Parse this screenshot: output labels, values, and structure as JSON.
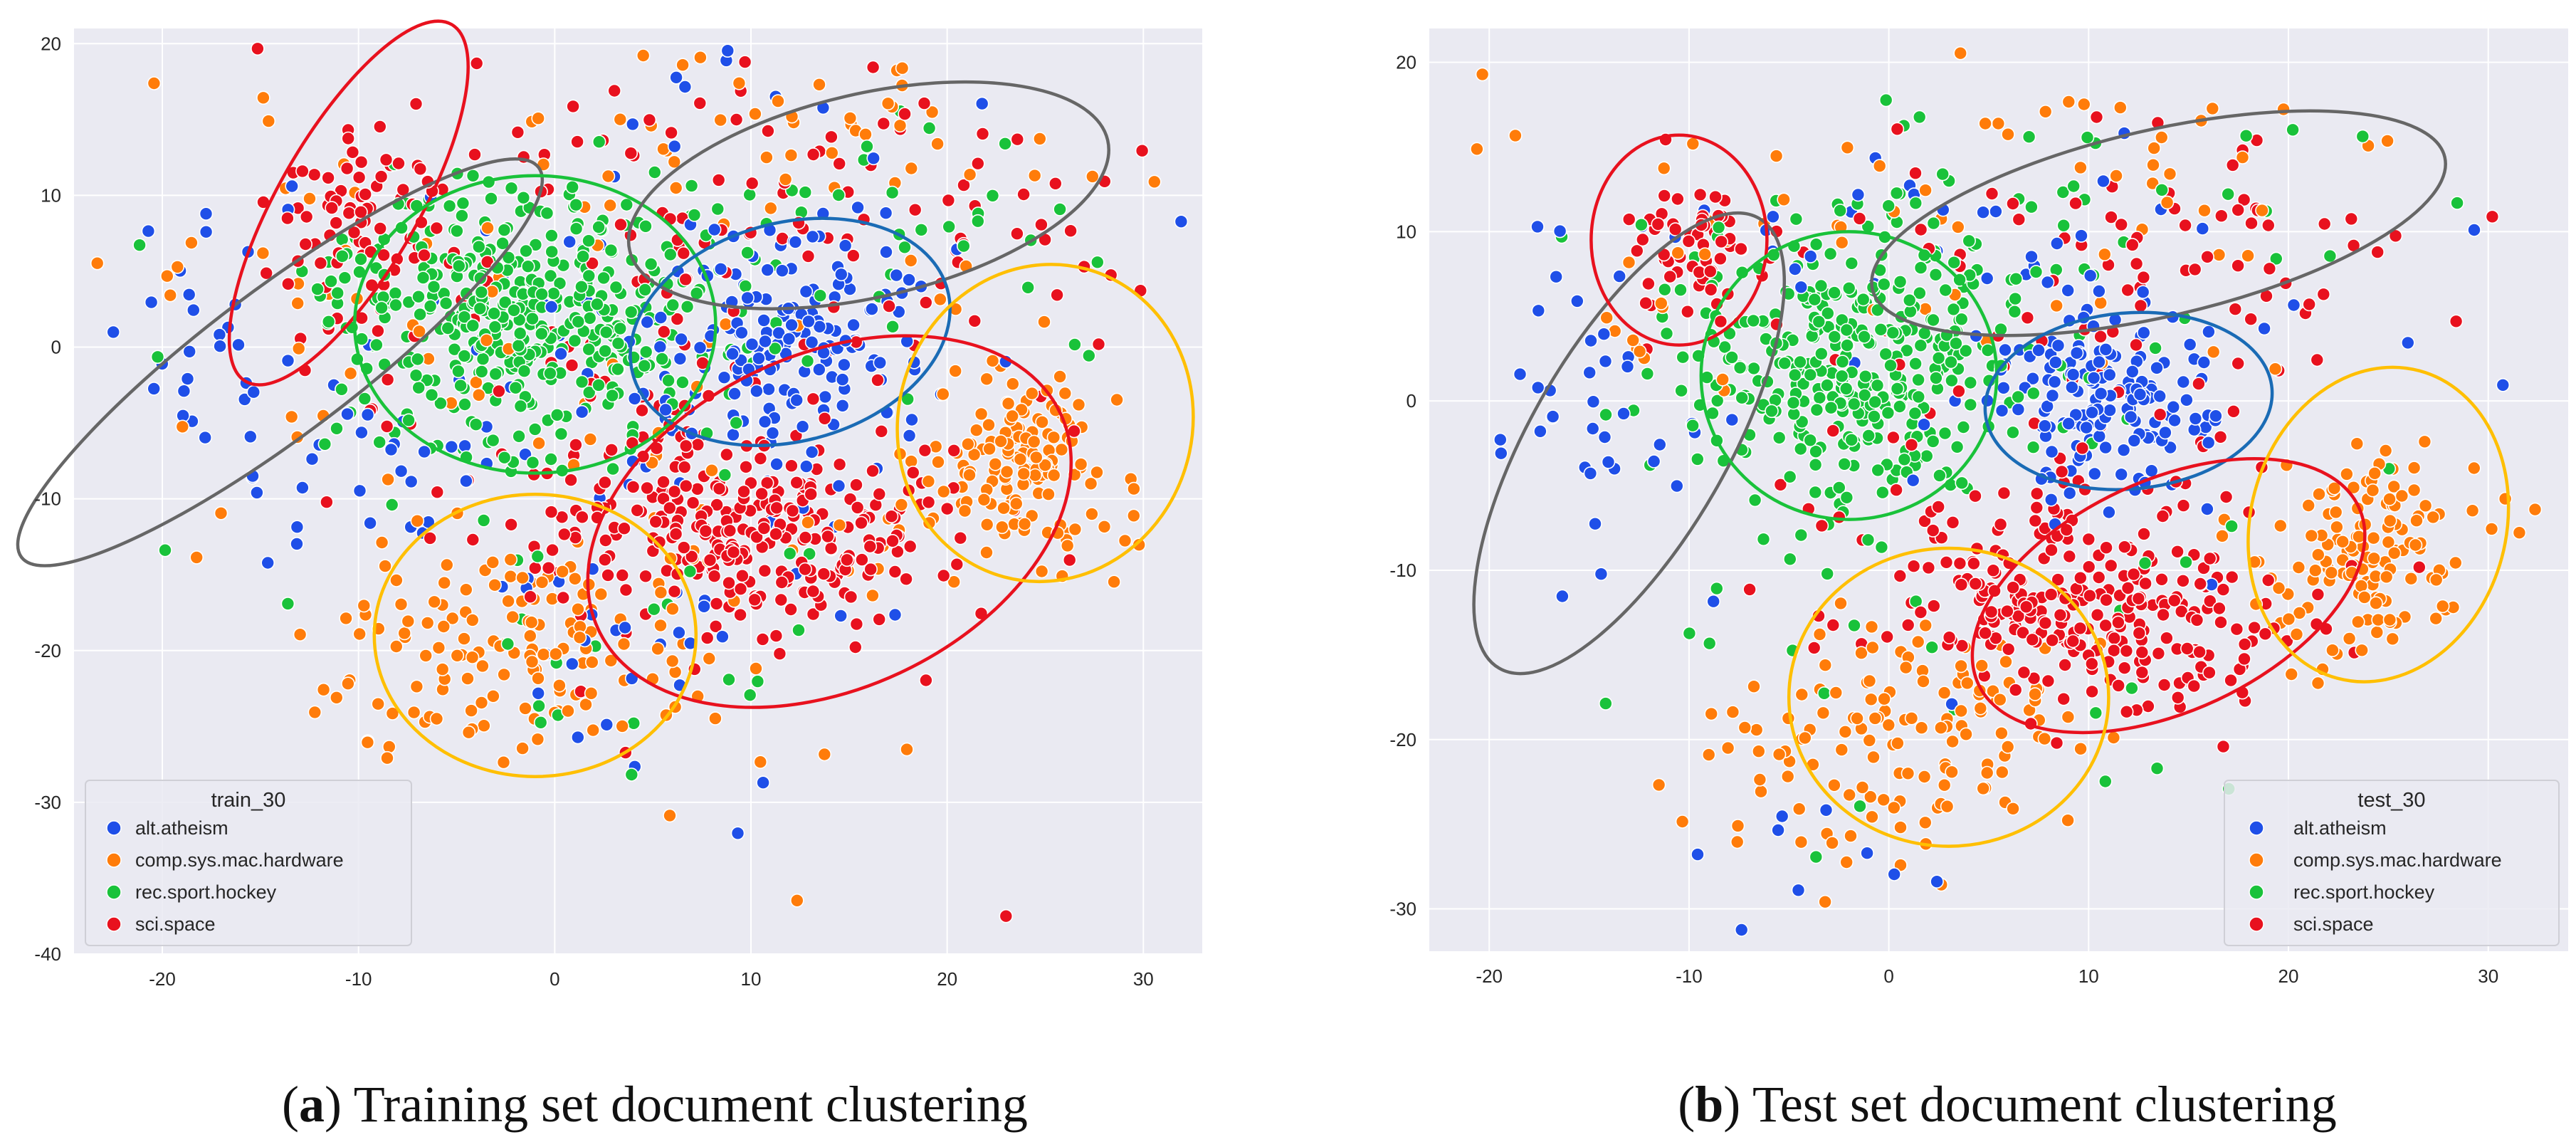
{
  "palette": {
    "alt.atheism": "#1f4fe8",
    "comp.sys.mac.hardware": "#ff7c0a",
    "rec.sport.hockey": "#19c23a",
    "sci.space": "#e8111e"
  },
  "captions": {
    "a": {
      "paren_open": "(",
      "letter": "a",
      "paren_close": ")",
      "text": " Training set document clustering"
    },
    "b": {
      "paren_open": "(",
      "letter": "b",
      "paren_close": ")",
      "text": " Test set document clustering"
    }
  },
  "chart_data": [
    {
      "type": "scatter",
      "panel": "a",
      "legend_title": "train_30",
      "legend_position": "lower-left",
      "grid": true,
      "xlim": [
        -24.5,
        33
      ],
      "ylim": [
        -40,
        21
      ],
      "xticks": [
        -20,
        -10,
        0,
        10,
        20,
        30
      ],
      "yticks": [
        20,
        10,
        0,
        -10,
        -20,
        -30,
        -40
      ],
      "series": [
        {
          "name": "alt.atheism",
          "clusters": [
            {
              "cx": 12,
              "cy": 0,
              "sx": 4,
              "sy": 4,
              "n": 160
            },
            {
              "cx": -18,
              "cy": 2,
              "sx": 3,
              "sy": 3.5,
              "n": 28
            },
            {
              "cx": -10,
              "cy": -8,
              "sx": 4,
              "sy": 5,
              "n": 30
            },
            {
              "cx": 5,
              "cy": 5,
              "sx": 10,
              "sy": 10,
              "n": 70
            },
            {
              "cx": 5,
              "cy": -20,
              "sx": 7,
              "sy": 5,
              "n": 30
            }
          ]
        },
        {
          "name": "comp.sys.mac.hardware",
          "clusters": [
            {
              "cx": 23.5,
              "cy": -8,
              "sx": 2.5,
              "sy": 3,
              "n": 150
            },
            {
              "cx": -2,
              "cy": -20,
              "sx": 4.5,
              "sy": 3.5,
              "n": 130
            },
            {
              "cx": 12,
              "cy": 12,
              "sx": 9,
              "sy": 4,
              "n": 60
            },
            {
              "cx": -12,
              "cy": 5,
              "sx": 6,
              "sy": 7,
              "n": 30
            },
            {
              "cx": 5,
              "cy": -15,
              "sx": 10,
              "sy": 8,
              "n": 60
            }
          ]
        },
        {
          "name": "rec.sport.hockey",
          "clusters": [
            {
              "cx": -2,
              "cy": 2,
              "sx": 5,
              "sy": 4,
              "n": 420
            },
            {
              "cx": 15,
              "cy": 8,
              "sx": 8,
              "sy": 4,
              "n": 40
            },
            {
              "cx": 0,
              "cy": -10,
              "sx": 10,
              "sy": 8,
              "n": 40
            }
          ]
        },
        {
          "name": "sci.space",
          "clusters": [
            {
              "cx": 10,
              "cy": -12,
              "sx": 5,
              "sy": 3.5,
              "n": 280
            },
            {
              "cx": -10,
              "cy": 8,
              "sx": 2.5,
              "sy": 4,
              "n": 80
            },
            {
              "cx": 12,
              "cy": 10,
              "sx": 10,
              "sy": 4,
              "n": 80
            },
            {
              "cx": 3,
              "cy": -5,
              "sx": 6,
              "sy": 6,
              "n": 80
            },
            {
              "cx": 22,
              "cy": 5,
              "sx": 5,
              "sy": 5,
              "n": 20
            },
            {
              "cx": 23,
              "cy": -37.5,
              "sx": 0.2,
              "sy": 0.2,
              "n": 1
            }
          ]
        }
      ],
      "ellipses": [
        {
          "color": "#666666",
          "cx": -14,
          "cy": -1,
          "rx": 16.5,
          "ry": 4.8,
          "angle": -37
        },
        {
          "color": "#e8111e",
          "cx": -10.5,
          "cy": 9.5,
          "rx": 10.5,
          "ry": 4.6,
          "angle": -60
        },
        {
          "color": "#19c23a",
          "cx": -1,
          "cy": 1.5,
          "rx": 9.2,
          "ry": 9.8,
          "angle": 0
        },
        {
          "color": "#666666",
          "cx": 16,
          "cy": 10,
          "rx": 12.5,
          "ry": 6.7,
          "angle": -13
        },
        {
          "color": "#1a6bb5",
          "cx": 12,
          "cy": 1,
          "rx": 8.3,
          "ry": 7.2,
          "angle": -15
        },
        {
          "color": "#e8111e",
          "cx": 14,
          "cy": -11.5,
          "rx": 13,
          "ry": 11,
          "angle": -25
        },
        {
          "color": "#ffbf00",
          "cx": 25,
          "cy": -5,
          "rx": 7.5,
          "ry": 10.5,
          "angle": 15
        },
        {
          "color": "#ffbf00",
          "cx": -1,
          "cy": -19,
          "rx": 8.2,
          "ry": 9.3,
          "angle": 0
        }
      ]
    },
    {
      "type": "scatter",
      "panel": "b",
      "legend_title": "test_30",
      "legend_position": "lower-right",
      "grid": true,
      "xlim": [
        -23,
        34
      ],
      "ylim": [
        -32.5,
        22
      ],
      "xticks": [
        -20,
        -10,
        0,
        10,
        20,
        30
      ],
      "yticks": [
        20,
        10,
        0,
        -10,
        -20,
        -30
      ],
      "series": [
        {
          "name": "alt.atheism",
          "clusters": [
            {
              "cx": 11,
              "cy": 0.5,
              "sx": 3,
              "sy": 3,
              "n": 160
            },
            {
              "cx": -15,
              "cy": 0,
              "sx": 3.5,
              "sy": 5,
              "n": 40
            },
            {
              "cx": 5,
              "cy": 8,
              "sx": 10,
              "sy": 8,
              "n": 40
            },
            {
              "cx": -3,
              "cy": -25,
              "sx": 3,
              "sy": 3,
              "n": 10
            }
          ]
        },
        {
          "name": "comp.sys.mac.hardware",
          "clusters": [
            {
              "cx": 24,
              "cy": -8.5,
              "sx": 2.5,
              "sy": 3,
              "n": 140
            },
            {
              "cx": 1,
              "cy": -20,
              "sx": 4.5,
              "sy": 4,
              "n": 140
            },
            {
              "cx": 10,
              "cy": 12,
              "sx": 9,
              "sy": 4,
              "n": 50
            },
            {
              "cx": -12,
              "cy": 8,
              "sx": 5,
              "sy": 6,
              "n": 20
            }
          ]
        },
        {
          "name": "rec.sport.hockey",
          "clusters": [
            {
              "cx": -2,
              "cy": 2,
              "sx": 4.5,
              "sy": 4,
              "n": 360
            },
            {
              "cx": 10,
              "cy": 10,
              "sx": 8,
              "sy": 4,
              "n": 40
            },
            {
              "cx": 5,
              "cy": -15,
              "sx": 10,
              "sy": 8,
              "n": 30
            }
          ]
        },
        {
          "name": "sci.space",
          "clusters": [
            {
              "cx": 10,
              "cy": -12,
              "sx": 4.5,
              "sy": 3,
              "n": 240
            },
            {
              "cx": -10,
              "cy": 8.5,
              "sx": 2,
              "sy": 2.5,
              "n": 60
            },
            {
              "cx": 13,
              "cy": 9,
              "sx": 8,
              "sy": 4,
              "n": 70
            },
            {
              "cx": 6,
              "cy": -5,
              "sx": 6,
              "sy": 6,
              "n": 60
            },
            {
              "cx": 17,
              "cy": -15,
              "sx": 3,
              "sy": 2,
              "n": 20
            }
          ]
        }
      ],
      "ellipses": [
        {
          "color": "#666666",
          "cx": -13,
          "cy": -2.5,
          "rx": 13,
          "ry": 5.8,
          "angle": -60
        },
        {
          "color": "#e8111e",
          "cx": -10.5,
          "cy": 9.5,
          "rx": 4.4,
          "ry": 6.2,
          "angle": 0
        },
        {
          "color": "#19c23a",
          "cx": -2,
          "cy": 1.5,
          "rx": 7.4,
          "ry": 8.5,
          "angle": 0
        },
        {
          "color": "#666666",
          "cx": 13.5,
          "cy": 10.5,
          "rx": 14.7,
          "ry": 5.5,
          "angle": -13
        },
        {
          "color": "#1a6bb5",
          "cx": 12,
          "cy": 0,
          "rx": 7.2,
          "ry": 5.2,
          "angle": -5
        },
        {
          "color": "#e8111e",
          "cx": 14,
          "cy": -11.5,
          "rx": 10.5,
          "ry": 6.8,
          "angle": -25
        },
        {
          "color": "#ffbf00",
          "cx": 24.5,
          "cy": -7.3,
          "rx": 6.4,
          "ry": 9.4,
          "angle": 15
        },
        {
          "color": "#ffbf00",
          "cx": 3,
          "cy": -17.5,
          "rx": 8,
          "ry": 8.8,
          "angle": 0
        }
      ]
    }
  ]
}
